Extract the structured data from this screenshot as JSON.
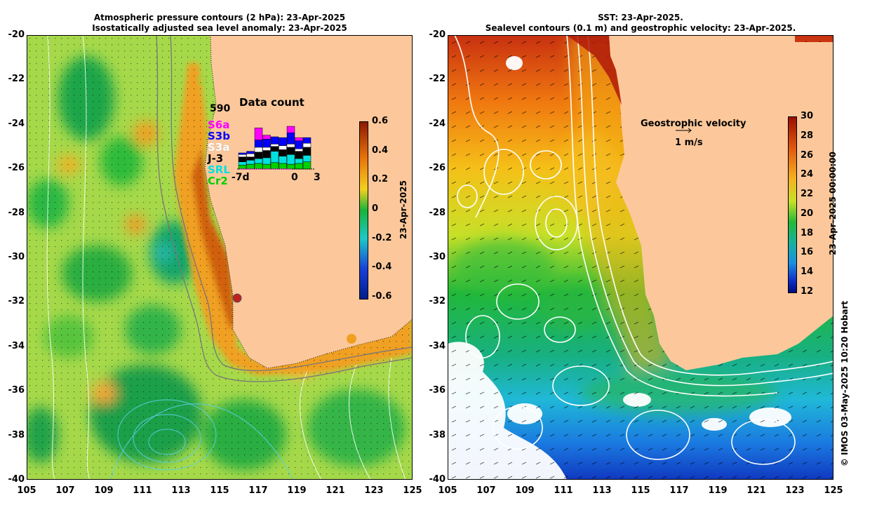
{
  "left_panel": {
    "title_line1": "Atmospheric pressure contours (2 hPa): 23-Apr-2025",
    "title_line2": "Isostatically adjusted sea level anomaly: 23-Apr-2025",
    "colorbar": {
      "ticks": [
        "0.6",
        "0.4",
        "0.2",
        "0",
        "-0.2",
        "-0.4",
        "-0.6"
      ],
      "label": "23-Apr-2025",
      "colors": {
        "top": "#8b1a00",
        "upper": "#e8720c",
        "mid_high": "#f5d020",
        "mid": "#19b43a",
        "low": "#1ec8c8",
        "lower": "#1a40d8",
        "bottom": "#001e8c"
      }
    },
    "data_count": {
      "title": "Data count",
      "max": "590",
      "missions": [
        {
          "label": "S6a",
          "color": "#ff00ff"
        },
        {
          "label": "S3b",
          "color": "#0000ff"
        },
        {
          "label": "S3a",
          "color": "#ffffff"
        },
        {
          "label": "J-3",
          "color": "#000000"
        },
        {
          "label": "SRL",
          "color": "#00e0e0"
        },
        {
          "label": "Cr2",
          "color": "#00d000"
        }
      ],
      "x_ticks": [
        "-7d",
        "0",
        "3"
      ]
    }
  },
  "right_panel": {
    "title_line1": "SST: 23-Apr-2025.",
    "title_line2": "Sealevel contours (0.1 m) and geostrophic velocity: 23-Apr-2025.",
    "velocity_legend": {
      "title": "Geostrophic velocity",
      "scale": "1 m/s"
    },
    "colorbar": {
      "ticks": [
        "30",
        "28",
        "26",
        "24",
        "22",
        "20",
        "18",
        "16",
        "14",
        "12"
      ],
      "label": "23-Apr-2025 00:00:00"
    }
  },
  "axes": {
    "x_ticks": [
      "105",
      "107",
      "109",
      "111",
      "113",
      "115",
      "117",
      "119",
      "121",
      "123",
      "125"
    ],
    "y_ticks": [
      "-20",
      "-22",
      "-24",
      "-26",
      "-28",
      "-30",
      "-32",
      "-34",
      "-36",
      "-38",
      "-40"
    ]
  },
  "credit": "© IMOS 03-May-2025 10:20 Hobart",
  "colors": {
    "land": "#fcc89b",
    "coast_anomaly": "#c45a14",
    "contour": "#ffffff"
  }
}
